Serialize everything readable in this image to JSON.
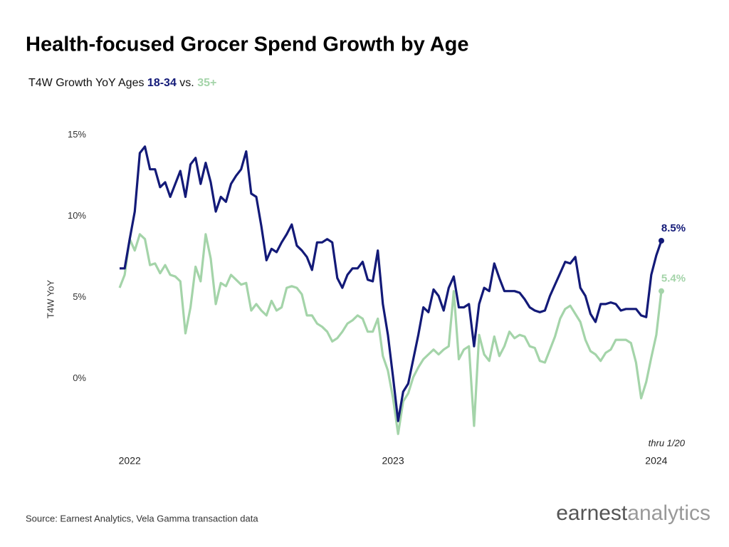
{
  "chart_data": {
    "type": "line",
    "title": "Health-focused Grocer Spend Growth by Age",
    "subtitle_parts": [
      "T4W Growth YoY Ages",
      "vs."
    ],
    "ylabel": "T4W YoY",
    "annotation": "thru 1/20",
    "source": "Source: Earnest Analytics, Vela Gamma transaction data",
    "logo": [
      "earnest",
      "analytics"
    ],
    "ylim": [
      -4,
      16
    ],
    "yticks": [
      {
        "value": 0,
        "label": "0%"
      },
      {
        "value": 5,
        "label": "5%"
      },
      {
        "value": 10,
        "label": "10%"
      },
      {
        "value": 15,
        "label": "15%"
      }
    ],
    "grid": false,
    "categories": [
      null,
      null,
      "2022",
      null,
      null,
      null,
      null,
      null,
      null,
      null,
      null,
      null,
      null,
      null,
      null,
      null,
      null,
      null,
      null,
      null,
      null,
      null,
      null,
      null,
      null,
      null,
      null,
      null,
      null,
      null,
      null,
      null,
      null,
      null,
      null,
      null,
      null,
      null,
      null,
      null,
      null,
      null,
      null,
      null,
      null,
      null,
      null,
      null,
      null,
      null,
      null,
      null,
      null,
      null,
      "2023",
      null,
      null,
      null,
      null,
      null,
      null,
      null,
      null,
      null,
      null,
      null,
      null,
      null,
      null,
      null,
      null,
      null,
      null,
      null,
      null,
      null,
      null,
      null,
      null,
      null,
      null,
      null,
      null,
      null,
      null,
      null,
      null,
      null,
      null,
      null,
      null,
      null,
      null,
      null,
      null,
      null,
      null,
      null,
      null,
      null,
      null,
      null,
      null,
      null,
      null,
      null,
      "2024",
      null
    ],
    "series": [
      {
        "name": "18-34",
        "color": "#131a78",
        "values": [
          6.8,
          6.8,
          8.6,
          10.3,
          13.9,
          14.3,
          12.9,
          12.9,
          11.8,
          12.1,
          11.2,
          12.0,
          12.8,
          11.2,
          13.2,
          13.6,
          12.0,
          13.3,
          12.1,
          10.3,
          11.2,
          10.9,
          12.0,
          12.5,
          12.9,
          14.0,
          11.4,
          11.2,
          9.4,
          7.3,
          8.0,
          7.8,
          8.4,
          8.9,
          9.5,
          8.2,
          7.9,
          7.5,
          6.7,
          8.4,
          8.4,
          8.6,
          8.4,
          6.2,
          5.6,
          6.4,
          6.8,
          6.8,
          7.2,
          6.1,
          6.0,
          7.9,
          4.6,
          2.7,
          0.1,
          -2.6,
          -0.8,
          -0.3,
          1.2,
          2.7,
          4.4,
          4.1,
          5.5,
          5.1,
          4.2,
          5.6,
          6.3,
          4.4,
          4.4,
          4.6,
          2.0,
          4.6,
          5.6,
          5.4,
          7.1,
          6.2,
          5.4,
          5.4,
          5.4,
          5.3,
          4.9,
          4.4,
          4.2,
          4.1,
          4.2,
          5.1,
          5.8,
          6.5,
          7.2,
          7.1,
          7.5,
          5.6,
          5.1,
          4.0,
          3.5,
          4.6,
          4.6,
          4.7,
          4.6,
          4.2,
          4.3,
          4.3,
          4.3,
          3.9,
          3.8,
          6.4,
          7.6,
          8.5
        ],
        "value_labels": [
          null,
          null,
          null,
          null,
          null,
          null,
          null,
          null,
          null,
          null,
          null,
          null,
          null,
          null,
          null,
          null,
          null,
          null,
          null,
          null,
          null,
          null,
          null,
          null,
          null,
          null,
          null,
          null,
          null,
          null,
          null,
          null,
          null,
          null,
          null,
          null,
          null,
          null,
          null,
          null,
          null,
          null,
          null,
          null,
          null,
          null,
          null,
          null,
          null,
          null,
          null,
          null,
          null,
          null,
          null,
          null,
          null,
          null,
          null,
          null,
          null,
          null,
          null,
          null,
          null,
          null,
          null,
          null,
          null,
          null,
          null,
          null,
          null,
          null,
          null,
          null,
          null,
          null,
          null,
          null,
          null,
          null,
          null,
          null,
          null,
          null,
          null,
          null,
          null,
          null,
          null,
          null,
          null,
          null,
          null,
          null,
          null,
          null,
          null,
          null,
          null,
          null,
          null,
          null,
          null,
          null,
          null,
          "8.5%"
        ]
      },
      {
        "name": "35+",
        "color": "#a4d4a9",
        "values": [
          5.6,
          6.4,
          8.6,
          7.9,
          8.9,
          8.6,
          7.0,
          7.1,
          6.5,
          7.0,
          6.4,
          6.3,
          6.0,
          2.8,
          4.4,
          6.9,
          6.0,
          8.9,
          7.4,
          4.6,
          5.9,
          5.7,
          6.4,
          6.1,
          5.8,
          5.9,
          4.2,
          4.6,
          4.2,
          3.9,
          4.8,
          4.2,
          4.4,
          5.6,
          5.7,
          5.6,
          5.2,
          3.9,
          3.9,
          3.4,
          3.2,
          2.9,
          2.3,
          2.5,
          2.9,
          3.4,
          3.6,
          3.9,
          3.7,
          2.9,
          2.9,
          3.7,
          1.4,
          0.5,
          -1.2,
          -3.4,
          -1.4,
          -0.9,
          0.1,
          0.7,
          1.2,
          1.5,
          1.8,
          1.5,
          1.8,
          2.0,
          5.4,
          1.2,
          1.8,
          2.0,
          -2.9,
          2.7,
          1.5,
          1.1,
          2.6,
          1.4,
          2.0,
          2.9,
          2.5,
          2.7,
          2.6,
          2.0,
          1.9,
          1.1,
          1.0,
          1.8,
          2.6,
          3.7,
          4.3,
          4.5,
          4.0,
          3.5,
          2.4,
          1.7,
          1.5,
          1.1,
          1.6,
          1.8,
          2.4,
          2.4,
          2.4,
          2.2,
          1.0,
          -1.2,
          -0.2,
          1.3,
          2.7,
          5.4
        ],
        "value_labels": [
          null,
          null,
          null,
          null,
          null,
          null,
          null,
          null,
          null,
          null,
          null,
          null,
          null,
          null,
          null,
          null,
          null,
          null,
          null,
          null,
          null,
          null,
          null,
          null,
          null,
          null,
          null,
          null,
          null,
          null,
          null,
          null,
          null,
          null,
          null,
          null,
          null,
          null,
          null,
          null,
          null,
          null,
          null,
          null,
          null,
          null,
          null,
          null,
          null,
          null,
          null,
          null,
          null,
          null,
          null,
          null,
          null,
          null,
          null,
          null,
          null,
          null,
          null,
          null,
          null,
          null,
          null,
          null,
          null,
          null,
          null,
          null,
          null,
          null,
          null,
          null,
          null,
          null,
          null,
          null,
          null,
          null,
          null,
          null,
          null,
          null,
          null,
          null,
          null,
          null,
          null,
          null,
          null,
          null,
          null,
          null,
          null,
          null,
          null,
          null,
          null,
          null,
          null,
          null,
          null,
          null,
          null,
          "5.4%"
        ]
      }
    ]
  }
}
